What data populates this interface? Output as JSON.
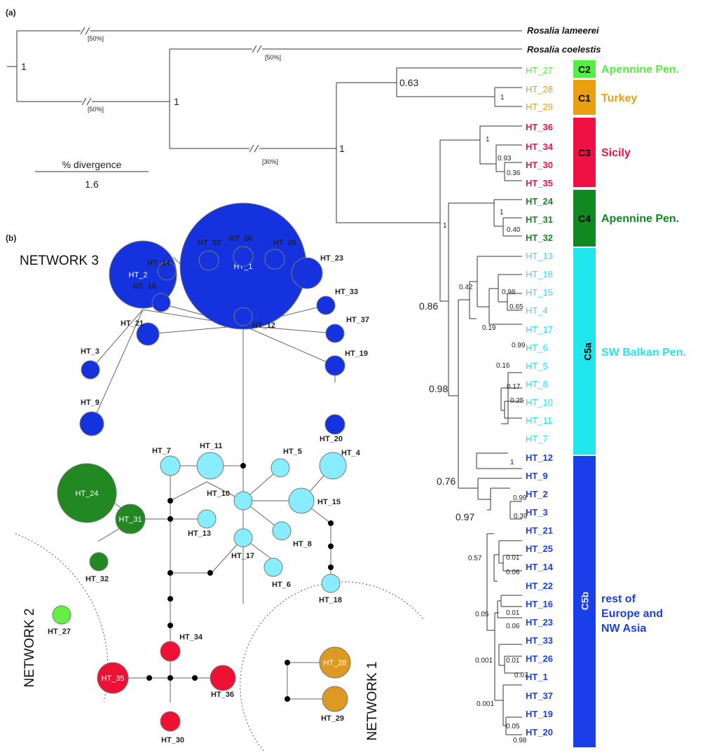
{
  "colors": {
    "green_light": "#55ee44",
    "orange": "#e8a010",
    "red": "#ee1144",
    "green_dark": "#118822",
    "cyan": "#22e6ee",
    "blue": "#1a3ee8",
    "network_blue": "#1432dd",
    "network_cyan": "#88eeff",
    "network_green": "#228822",
    "network_red": "#ee1133",
    "network_lightgreen": "#66ee44",
    "network_orange": "#dd9922"
  },
  "panel_a": {
    "label": "(a)",
    "outgroups": [
      "Rosalia lameerei",
      "Rosalia coelestis"
    ],
    "break_labels": [
      "[50%]",
      "[50%]",
      "[50%]",
      "[30%]"
    ],
    "scale_title": "% divergence",
    "scale_value": "1.6",
    "tips": [
      "HT_27",
      "HT_28",
      "HT_29",
      "HT_36",
      "HT_34",
      "HT_30",
      "HT_35",
      "HT_24",
      "HT_31",
      "HT_32",
      "HT_13",
      "HT_18",
      "HT_15",
      "HT_4",
      "HT_17",
      "HT_6",
      "HT_5",
      "HT_8",
      "HT_10",
      "HT_11",
      "HT_7",
      "HT_12",
      "HT_9",
      "HT_2",
      "HT_3",
      "HT_21",
      "HT_25",
      "HT_14",
      "HT_22",
      "HT_16",
      "HT_23",
      "HT_33",
      "HT_26",
      "HT_1",
      "HT_37",
      "HT_19",
      "HT_20"
    ],
    "support_large": [
      "1",
      "1",
      "1",
      "0.63",
      "1",
      "1",
      "1",
      "1",
      "0.86",
      "0.98",
      "0.76",
      "0.97"
    ],
    "support_small": [
      "0.93",
      "0.36",
      "0.40",
      "0.42",
      "0.98",
      "0.65",
      "0.19",
      "0.99",
      "0.16",
      "0.17",
      "0.25",
      "1",
      "0.99",
      "0.39",
      "0.57",
      "0.01",
      "0.06",
      "0.05",
      "0.01",
      "0.06",
      "0.001",
      "0.01",
      "0.07",
      "0.001",
      "0.05",
      "0.98"
    ],
    "clades": [
      {
        "code": "C2",
        "region": "Apennine Pen."
      },
      {
        "code": "C1",
        "region": "Turkey"
      },
      {
        "code": "C3",
        "region": "Sicily"
      },
      {
        "code": "C4",
        "region": "Apennine Pen."
      },
      {
        "code": "C5a",
        "region": "SW Balkan Pen."
      },
      {
        "code": "C5b",
        "region_lines": [
          "rest of",
          "Europe and",
          "NW Asia"
        ]
      }
    ]
  },
  "panel_b": {
    "label": "(b)",
    "networks": [
      "NETWORK 3",
      "NETWORK 2",
      "NETWORK 1"
    ],
    "nodes": [
      "HT_1",
      "HT_2",
      "HT_3",
      "HT_9",
      "HT_21",
      "HT_16",
      "HT_14",
      "HT_22",
      "HT_26",
      "HT_25",
      "HT_23",
      "HT_33",
      "HT_37",
      "HT_19",
      "HT_20",
      "HT_12",
      "HT_7",
      "HT_11",
      "HT_5",
      "HT_4",
      "HT_10",
      "HT_15",
      "HT_13",
      "HT_8",
      "HT_17",
      "HT_6",
      "HT_18",
      "HT_24",
      "HT_31",
      "HT_32",
      "HT_27",
      "HT_34",
      "HT_35",
      "HT_36",
      "HT_30",
      "HT_28",
      "HT_29"
    ]
  }
}
